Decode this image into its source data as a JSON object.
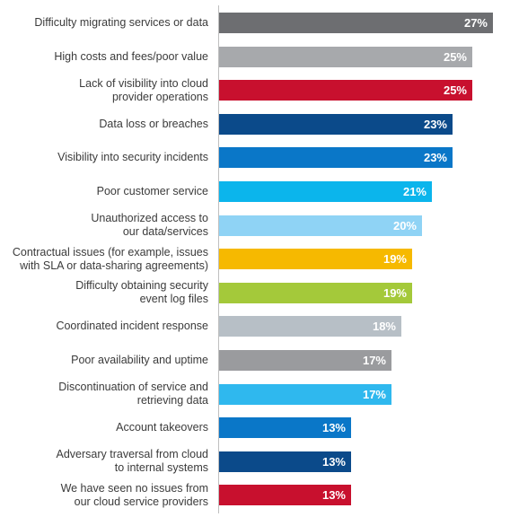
{
  "chart_data": {
    "type": "bar",
    "orientation": "horizontal",
    "categories": [
      "Difficulty migrating services or data",
      "High costs and fees/poor value",
      "Lack of visibility into cloud\nprovider operations",
      "Data loss or breaches",
      "Visibility into security incidents",
      "Poor customer service",
      "Unauthorized access to\nour data/services",
      "Contractual issues (for example, issues\nwith SLA or data-sharing agreements)",
      "Difficulty obtaining security\nevent log files",
      "Coordinated incident response",
      "Poor availability and uptime",
      "Discontinuation of service and\nretrieving data",
      "Account takeovers",
      "Adversary traversal from cloud\nto internal systems",
      "We have seen no issues from\nour cloud service providers"
    ],
    "values": [
      27,
      25,
      25,
      23,
      23,
      21,
      20,
      19,
      19,
      18,
      17,
      17,
      13,
      13,
      13
    ],
    "value_labels": [
      "27%",
      "25%",
      "25%",
      "23%",
      "23%",
      "21%",
      "20%",
      "19%",
      "19%",
      "18%",
      "17%",
      "17%",
      "13%",
      "13%",
      "13%"
    ],
    "colors": [
      "#6d6e71",
      "#a7a9ac",
      "#c8102e",
      "#0b4a8a",
      "#0a77c8",
      "#0bb5ec",
      "#8fd3f5",
      "#f6b900",
      "#a4c93a",
      "#b7bfc6",
      "#9a9b9e",
      "#2fb8ee",
      "#0a77c8",
      "#0b4a8a",
      "#c8102e"
    ],
    "xlim": [
      0,
      27
    ],
    "title": "",
    "xlabel": "",
    "ylabel": "",
    "grid": false,
    "legend": "none"
  }
}
